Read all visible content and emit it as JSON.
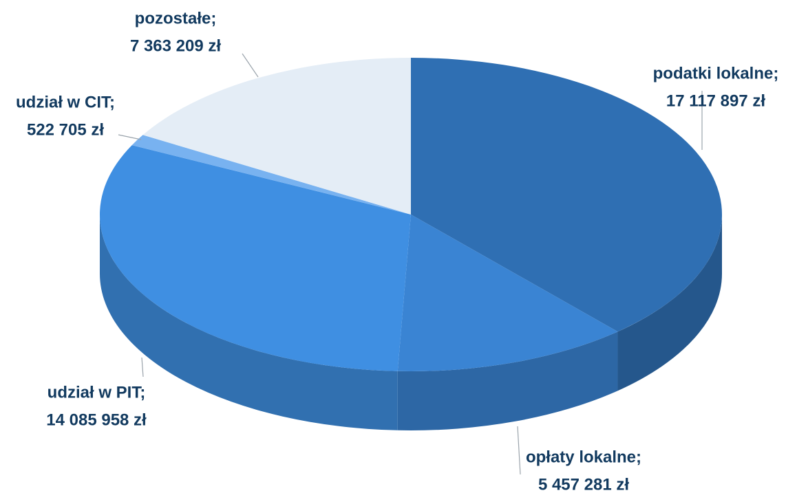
{
  "chart_data": {
    "type": "pie3d",
    "categories": [
      "podatki lokalne;",
      "opłaty lokalne;",
      "udział w PIT;",
      "udział w CIT;",
      "pozostałe;"
    ],
    "values": [
      17117897,
      5457281,
      14085958,
      522705,
      7363209
    ],
    "value_labels": [
      "17 117 897 zł",
      "5 457 281 zł",
      "14 085 958 zł",
      "522 705 zł",
      "7 363 209 zł"
    ],
    "colors": [
      "#2f6fb3",
      "#3a84d3",
      "#3f8fe2",
      "#78b2f0",
      "#e4edf6"
    ]
  }
}
